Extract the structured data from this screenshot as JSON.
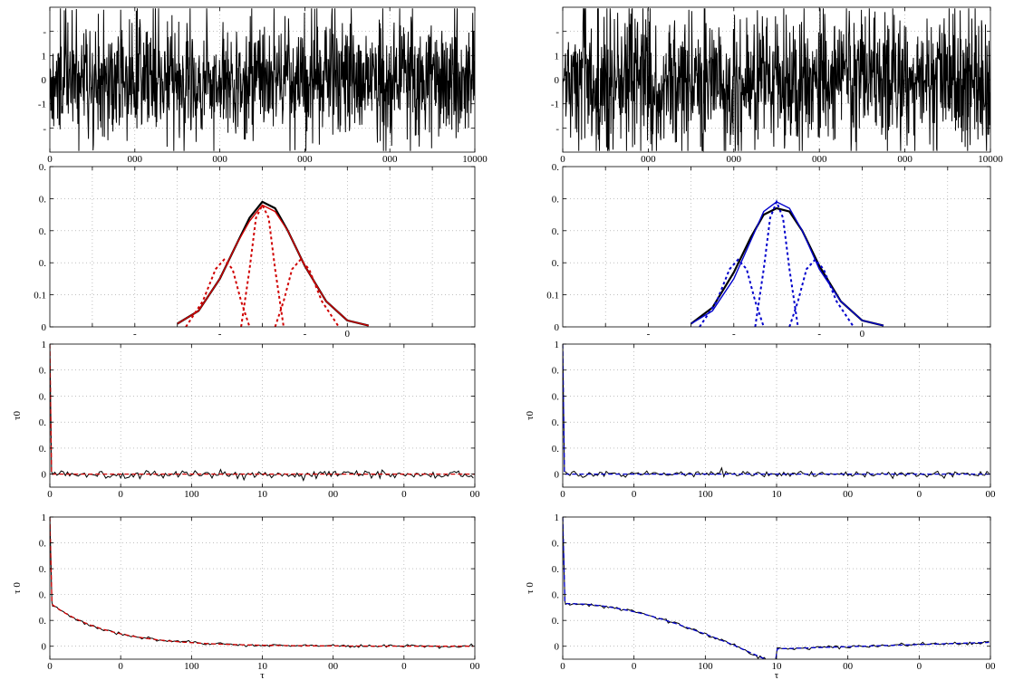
{
  "colors": {
    "axes": "#000000",
    "grid": "#9a9a9a",
    "data": "#000000",
    "model_left": "#d00000",
    "model_right": "#0000cc"
  },
  "chart_data": [
    {
      "id": "ts-left",
      "type": "line",
      "row": 0,
      "col": 0,
      "xlim": [
        0,
        10000
      ],
      "ylim": [
        -3,
        3
      ],
      "xticks": [
        0,
        2000,
        4000,
        6000,
        8000,
        10000
      ],
      "xtick_labels": [
        "0",
        "000",
        "000",
        "000",
        "000",
        "10000"
      ],
      "yticks": [
        -2,
        -1,
        0,
        1,
        2
      ],
      "ytick_labels": [
        "-",
        "-1",
        "0",
        "1",
        "-"
      ],
      "ylabel": "",
      "xlabel": "",
      "grid": true,
      "series": [
        {
          "color_key": "data",
          "kind": "noise",
          "seed": 11,
          "n": 1200,
          "amp": 0.85,
          "burst": 2.8
        }
      ]
    },
    {
      "id": "ts-right",
      "type": "line",
      "row": 0,
      "col": 1,
      "xlim": [
        0,
        10000
      ],
      "ylim": [
        -3,
        3
      ],
      "xticks": [
        0,
        2000,
        4000,
        6000,
        8000,
        10000
      ],
      "xtick_labels": [
        "0",
        "000",
        "000",
        "000",
        "000",
        "10000"
      ],
      "yticks": [
        -2,
        -1,
        0,
        1,
        2
      ],
      "ytick_labels": [
        "-",
        "-1",
        "0",
        "1",
        "-"
      ],
      "ylabel": "",
      "xlabel": "",
      "grid": true,
      "series": [
        {
          "color_key": "data",
          "kind": "noise",
          "seed": 23,
          "n": 1200,
          "amp": 0.95,
          "burst": 2.9
        }
      ]
    },
    {
      "id": "pdf-left",
      "type": "line",
      "row": 1,
      "col": 0,
      "xlim": [
        -5,
        5
      ],
      "ylim": [
        0,
        0.5
      ],
      "xticks": [
        -4,
        -3,
        -2,
        -1,
        0,
        1,
        2,
        3,
        4
      ],
      "xtick_labels": [
        "",
        "-",
        "",
        "-",
        "",
        "-",
        "0",
        "",
        ""
      ],
      "yticks": [
        0,
        0.1,
        0.2,
        0.3,
        0.4,
        0.5
      ],
      "ytick_labels": [
        "0",
        "0.1",
        "0.",
        "0.",
        "0.",
        "0."
      ],
      "ylabel": "",
      "xlabel": "",
      "grid": true,
      "series": [
        {
          "color_key": "data",
          "width": 2.2,
          "kind": "curve",
          "x": [
            -2.0,
            -1.5,
            -1.0,
            -0.6,
            -0.3,
            0.0,
            0.3,
            0.6,
            1.0,
            1.5,
            2.0,
            2.5
          ],
          "y": [
            0.01,
            0.05,
            0.15,
            0.26,
            0.34,
            0.39,
            0.37,
            0.3,
            0.19,
            0.08,
            0.02,
            0.004
          ]
        },
        {
          "color_key": "model_left",
          "width": 1.4,
          "kind": "curve",
          "x": [
            -2.0,
            -1.5,
            -1.0,
            -0.6,
            -0.3,
            0.0,
            0.3,
            0.6,
            1.0,
            1.5,
            2.0,
            2.5
          ],
          "y": [
            0.01,
            0.05,
            0.15,
            0.26,
            0.33,
            0.38,
            0.36,
            0.3,
            0.19,
            0.08,
            0.02,
            0.004
          ]
        },
        {
          "color_key": "model_left",
          "width": 2,
          "dash": "3,3",
          "kind": "curve",
          "x": [
            -1.8,
            -1.4,
            -1.1,
            -0.9,
            -0.7,
            -0.5,
            -0.3
          ],
          "y": [
            0.0,
            0.08,
            0.18,
            0.21,
            0.18,
            0.08,
            0.0
          ]
        },
        {
          "color_key": "model_left",
          "width": 2,
          "dash": "3,3",
          "kind": "curve",
          "x": [
            -0.5,
            -0.3,
            -0.15,
            0.0,
            0.15,
            0.3,
            0.5
          ],
          "y": [
            0.0,
            0.18,
            0.34,
            0.38,
            0.34,
            0.18,
            0.0
          ]
        },
        {
          "color_key": "model_left",
          "width": 2,
          "dash": "3,3",
          "kind": "curve",
          "x": [
            0.3,
            0.5,
            0.7,
            0.9,
            1.1,
            1.4,
            1.8
          ],
          "y": [
            0.0,
            0.08,
            0.18,
            0.21,
            0.18,
            0.08,
            0.0
          ]
        }
      ]
    },
    {
      "id": "pdf-right",
      "type": "line",
      "row": 1,
      "col": 1,
      "xlim": [
        -5,
        5
      ],
      "ylim": [
        0,
        0.5
      ],
      "xticks": [
        -4,
        -3,
        -2,
        -1,
        0,
        1,
        2,
        3,
        4
      ],
      "xtick_labels": [
        "",
        "-",
        "",
        "-",
        "",
        "-",
        "0",
        "",
        ""
      ],
      "yticks": [
        0,
        0.1,
        0.2,
        0.3,
        0.4,
        0.5
      ],
      "ytick_labels": [
        "0",
        "0.1",
        "0.",
        "0.",
        "0.",
        "0."
      ],
      "ylabel": "",
      "xlabel": "",
      "grid": true,
      "series": [
        {
          "color_key": "data",
          "width": 2.2,
          "kind": "curve",
          "x": [
            -2.0,
            -1.5,
            -1.0,
            -0.6,
            -0.3,
            0.0,
            0.3,
            0.6,
            1.0,
            1.5,
            2.0,
            2.5
          ],
          "y": [
            0.01,
            0.06,
            0.17,
            0.28,
            0.35,
            0.37,
            0.36,
            0.3,
            0.19,
            0.08,
            0.02,
            0.004
          ]
        },
        {
          "color_key": "model_right",
          "width": 1.4,
          "kind": "curve",
          "x": [
            -2.0,
            -1.5,
            -1.0,
            -0.6,
            -0.3,
            0.0,
            0.3,
            0.6,
            1.0,
            1.5,
            2.0,
            2.5
          ],
          "y": [
            0.01,
            0.05,
            0.15,
            0.27,
            0.36,
            0.39,
            0.37,
            0.3,
            0.18,
            0.08,
            0.02,
            0.004
          ]
        },
        {
          "color_key": "model_right",
          "width": 2,
          "dash": "3,3",
          "kind": "curve",
          "x": [
            -1.8,
            -1.4,
            -1.1,
            -0.9,
            -0.7,
            -0.5,
            -0.3
          ],
          "y": [
            0.0,
            0.08,
            0.18,
            0.21,
            0.18,
            0.08,
            0.0
          ]
        },
        {
          "color_key": "model_right",
          "width": 2,
          "dash": "3,3",
          "kind": "curve",
          "x": [
            -0.5,
            -0.3,
            -0.15,
            0.0,
            0.15,
            0.3,
            0.5
          ],
          "y": [
            0.0,
            0.18,
            0.34,
            0.39,
            0.34,
            0.18,
            0.0
          ]
        },
        {
          "color_key": "model_right",
          "width": 2,
          "dash": "3,3",
          "kind": "curve",
          "x": [
            0.3,
            0.5,
            0.7,
            0.9,
            1.1,
            1.4,
            1.8
          ],
          "y": [
            0.0,
            0.08,
            0.18,
            0.21,
            0.18,
            0.08,
            0.0
          ]
        }
      ]
    },
    {
      "id": "acf-left",
      "type": "line",
      "row": 2,
      "col": 0,
      "xlim": [
        0,
        300
      ],
      "ylim": [
        -0.1,
        1.0
      ],
      "xticks": [
        0,
        50,
        100,
        150,
        200,
        250,
        300
      ],
      "xtick_labels": [
        "0",
        "0",
        "100",
        "10",
        "00",
        "0",
        "00"
      ],
      "yticks": [
        0,
        0.2,
        0.4,
        0.6,
        0.8,
        1.0
      ],
      "ytick_labels": [
        "0",
        "0.",
        "0.",
        "0.",
        "0.",
        "1"
      ],
      "ylabel": "τ0",
      "xlabel": "",
      "grid": true,
      "series": [
        {
          "color_key": "data",
          "kind": "spikenoise",
          "seed": 5,
          "noise": 0.015,
          "tau": 0,
          "offset": 0.0
        },
        {
          "color_key": "model_left",
          "kind": "spikedecay",
          "width": 1.3,
          "dash": "5,3",
          "tau": 0,
          "offset": 0.0
        }
      ]
    },
    {
      "id": "acf-right",
      "type": "line",
      "row": 2,
      "col": 1,
      "xlim": [
        0,
        300
      ],
      "ylim": [
        -0.1,
        1.0
      ],
      "xticks": [
        0,
        50,
        100,
        150,
        200,
        250,
        300
      ],
      "xtick_labels": [
        "0",
        "0",
        "100",
        "10",
        "00",
        "0",
        "00"
      ],
      "yticks": [
        0,
        0.2,
        0.4,
        0.6,
        0.8,
        1.0
      ],
      "ytick_labels": [
        "0",
        "0.",
        "0.",
        "0.",
        "0.",
        "1"
      ],
      "ylabel": "τ0",
      "xlabel": "",
      "grid": true,
      "series": [
        {
          "color_key": "data",
          "kind": "spikenoise",
          "seed": 9,
          "noise": 0.012,
          "tau": 0,
          "offset": 0.0
        },
        {
          "color_key": "model_right",
          "kind": "spikedecay",
          "width": 1.3,
          "dash": "5,3",
          "tau": 0,
          "offset": 0.0
        }
      ]
    },
    {
      "id": "acf2-left",
      "type": "line",
      "row": 3,
      "col": 0,
      "xlim": [
        0,
        300
      ],
      "ylim": [
        -0.1,
        1.0
      ],
      "xticks": [
        0,
        50,
        100,
        150,
        200,
        250,
        300
      ],
      "xtick_labels": [
        "0",
        "0",
        "100",
        "10",
        "00",
        "0",
        "00"
      ],
      "yticks": [
        0,
        0.2,
        0.4,
        0.6,
        0.8,
        1.0
      ],
      "ytick_labels": [
        "0",
        "0.",
        "0.",
        "0.",
        "0.",
        "1"
      ],
      "ylabel": "τ 0",
      "xlabel": "τ",
      "grid": true,
      "series": [
        {
          "color_key": "data",
          "kind": "expdecay",
          "seed": 3,
          "noise": 0.006,
          "a": 0.32,
          "tau": 40,
          "c": 0.0
        },
        {
          "color_key": "model_left",
          "kind": "expdecay",
          "width": 1.3,
          "dash": "5,3",
          "seed": 0,
          "noise": 0,
          "a": 0.32,
          "tau": 40,
          "c": 0.0
        }
      ]
    },
    {
      "id": "acf2-right",
      "type": "line",
      "row": 3,
      "col": 1,
      "xlim": [
        0,
        300
      ],
      "ylim": [
        -0.1,
        1.0
      ],
      "xticks": [
        0,
        50,
        100,
        150,
        200,
        250,
        300
      ],
      "xtick_labels": [
        "0",
        "0",
        "100",
        "10",
        "00",
        "0",
        "00"
      ],
      "yticks": [
        0,
        0.2,
        0.4,
        0.6,
        0.8,
        1.0
      ],
      "ytick_labels": [
        "0",
        "0.",
        "0.",
        "0.",
        "0.",
        "1"
      ],
      "ylabel": "τ 0",
      "xlabel": "τ",
      "grid": true,
      "series": [
        {
          "color_key": "data",
          "kind": "bowl",
          "seed": 4,
          "noise": 0.006,
          "a": 0.33
        },
        {
          "color_key": "model_right",
          "kind": "bowl",
          "width": 1.3,
          "dash": "5,3",
          "seed": 0,
          "noise": 0,
          "a": 0.33
        }
      ]
    }
  ]
}
